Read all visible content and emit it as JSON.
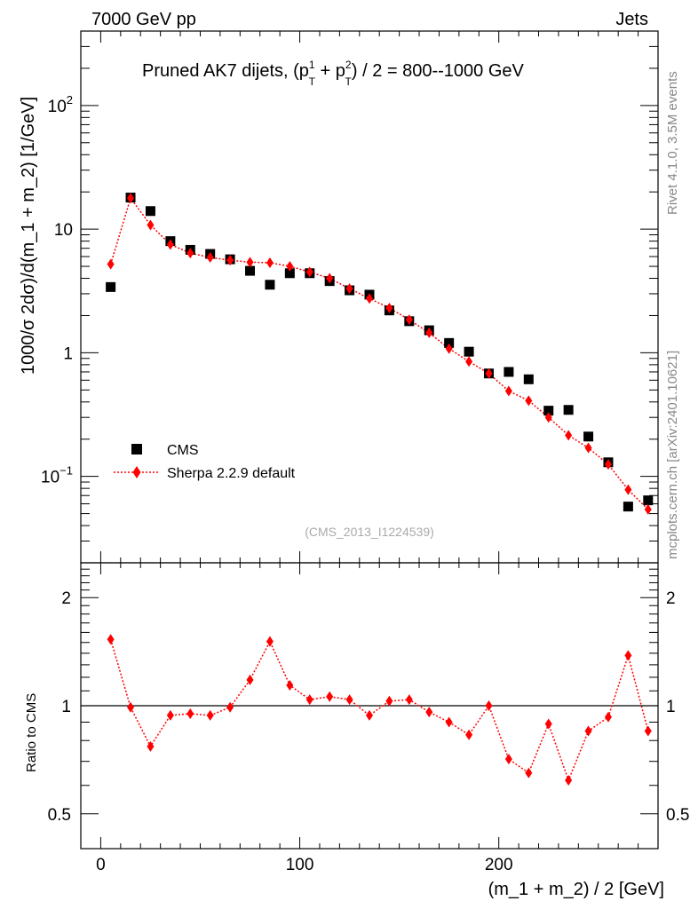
{
  "header": {
    "left": "7000 GeV pp",
    "right": "Jets"
  },
  "side_text": {
    "rivet": "Rivet 4.1.0,  3.5M events",
    "mcplots": "mcplots.cern.ch [arXiv:2401.10621]"
  },
  "chart_data": [
    {
      "type": "scatter",
      "title_main": "Pruned AK7 dijets, (p",
      "title_sup1": "1",
      "title_subT1": "T",
      "title_mid": " + p",
      "title_sup2": "2",
      "title_subT2": "T",
      "title_tail": ") / 2 = 800--1000 GeV",
      "ylabel": "1000/σ   2dσ)/d(m_1 + m_2) [1/GeV]",
      "yscale": "log",
      "ylim": [
        0.02,
        400
      ],
      "xlim": [
        -10,
        280
      ],
      "yticks": [
        {
          "v": 0.1,
          "base": "10",
          "exp": "−1"
        },
        {
          "v": 1,
          "base": "1",
          "exp": ""
        },
        {
          "v": 10,
          "base": "10",
          "exp": ""
        },
        {
          "v": 100,
          "base": "10",
          "exp": "2"
        }
      ],
      "watermark": "(CMS_2013_I1224539)",
      "legend": {
        "placement": "bottom-left",
        "entries": [
          "CMS",
          "Sherpa 2.2.9 default"
        ]
      },
      "x": [
        5,
        15,
        25,
        35,
        45,
        55,
        65,
        75,
        85,
        95,
        105,
        115,
        125,
        135,
        145,
        155,
        165,
        175,
        185,
        195,
        205,
        215,
        225,
        235,
        245,
        255,
        265,
        275
      ],
      "series": [
        {
          "name": "CMS",
          "marker": "square",
          "color": "#000000",
          "values": [
            3.4,
            18,
            14,
            8,
            6.8,
            6.3,
            5.7,
            4.6,
            3.55,
            4.4,
            4.4,
            3.8,
            3.2,
            2.95,
            2.2,
            1.8,
            1.52,
            1.2,
            1.02,
            0.68,
            0.7,
            0.61,
            0.34,
            0.345,
            0.21,
            0.13,
            0.057,
            0.064
          ]
        },
        {
          "name": "Sherpa 2.2.9 default",
          "marker": "diamond",
          "color": "#ff0000",
          "values": [
            5.2,
            17.8,
            10.8,
            7.5,
            6.4,
            5.9,
            5.6,
            5.4,
            5.35,
            5.0,
            4.5,
            4.0,
            3.3,
            2.75,
            2.3,
            1.85,
            1.45,
            1.08,
            0.85,
            0.68,
            0.49,
            0.41,
            0.3,
            0.215,
            0.17,
            0.125,
            0.078,
            0.054
          ]
        }
      ]
    },
    {
      "type": "scatter",
      "ylabel": "Ratio to CMS",
      "xlabel": "(m_1 + m_2) / 2 [GeV]",
      "yscale": "log",
      "ylim": [
        0.4,
        2.5
      ],
      "xlim": [
        -10,
        280
      ],
      "xticks": [
        0,
        100,
        200
      ],
      "yticks": [
        0.5,
        1,
        2
      ],
      "reference": 1,
      "x": [
        5,
        15,
        25,
        35,
        45,
        55,
        65,
        75,
        85,
        95,
        105,
        115,
        125,
        135,
        145,
        155,
        165,
        175,
        185,
        195,
        205,
        215,
        225,
        235,
        245,
        255,
        265,
        275
      ],
      "series": [
        {
          "name": "Sherpa 2.2.9 default",
          "marker": "diamond",
          "color": "#ff0000",
          "values": [
            1.53,
            0.99,
            0.77,
            0.94,
            0.95,
            0.94,
            0.99,
            1.18,
            1.51,
            1.14,
            1.04,
            1.06,
            1.04,
            0.94,
            1.03,
            1.04,
            0.96,
            0.9,
            0.83,
            1.0,
            0.71,
            0.65,
            0.89,
            0.62,
            0.85,
            0.93,
            1.38,
            0.85
          ]
        }
      ]
    }
  ]
}
